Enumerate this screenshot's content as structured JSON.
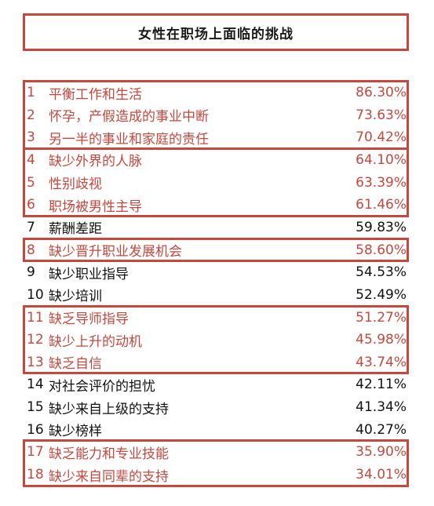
{
  "chart_data": {
    "type": "table",
    "title": "女性在职场上面临的挑战",
    "accent_color": "#c8473d",
    "rows": [
      {
        "rank": "1",
        "label": "平衡工作和生活",
        "value": "86.30%",
        "highlight": true
      },
      {
        "rank": "2",
        "label": "怀孕，产假造成的事业中断",
        "value": "73.63%",
        "highlight": true
      },
      {
        "rank": "3",
        "label": "另一半的事业和家庭的责任",
        "value": "70.42%",
        "highlight": true
      },
      {
        "rank": "4",
        "label": "缺少外界的人脉",
        "value": "64.10%",
        "highlight": true
      },
      {
        "rank": "5",
        "label": "性别歧视",
        "value": "63.39%",
        "highlight": true
      },
      {
        "rank": "6",
        "label": "职场被男性主导",
        "value": "61.46%",
        "highlight": true
      },
      {
        "rank": "7",
        "label": "薪酬差距",
        "value": "59.83%",
        "highlight": false
      },
      {
        "rank": "8",
        "label": "缺少晋升职业发展机会",
        "value": "58.60%",
        "highlight": true
      },
      {
        "rank": "9",
        "label": "缺少职业指导",
        "value": "54.53%",
        "highlight": false
      },
      {
        "rank": "10",
        "label": "缺少培训",
        "value": "52.49%",
        "highlight": false
      },
      {
        "rank": "11",
        "label": "缺乏导师指导",
        "value": "51.27%",
        "highlight": true
      },
      {
        "rank": "12",
        "label": "缺少上升的动机",
        "value": "45.98%",
        "highlight": true
      },
      {
        "rank": "13",
        "label": "缺乏自信",
        "value": "43.74%",
        "highlight": true
      },
      {
        "rank": "14",
        "label": "对社会评价的担忧",
        "value": "42.11%",
        "highlight": false
      },
      {
        "rank": "15",
        "label": "缺少来自上级的支持",
        "value": "41.34%",
        "highlight": false
      },
      {
        "rank": "16",
        "label": "缺少榜样",
        "value": "40.27%",
        "highlight": false
      },
      {
        "rank": "17",
        "label": "缺乏能力和专业技能",
        "value": "35.90%",
        "highlight": true
      },
      {
        "rank": "18",
        "label": "缺少来自同辈的支持",
        "value": "34.01%",
        "highlight": true
      }
    ],
    "groups": [
      {
        "from": 1,
        "to": 3
      },
      {
        "from": 4,
        "to": 6
      },
      {
        "from": 8,
        "to": 8
      },
      {
        "from": 11,
        "to": 13
      },
      {
        "from": 17,
        "to": 18
      }
    ]
  }
}
